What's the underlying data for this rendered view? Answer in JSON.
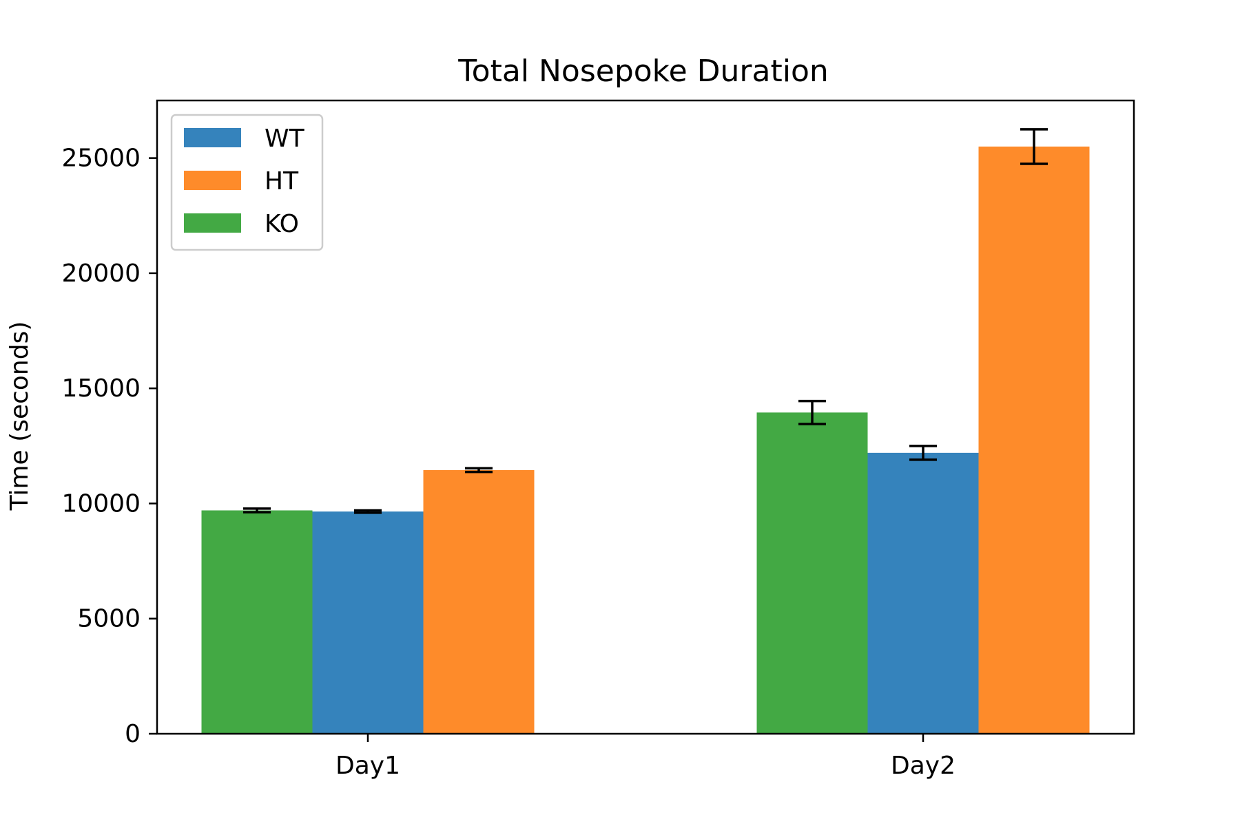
{
  "chart_data": {
    "type": "bar",
    "title": "Total Nosepoke Duration",
    "xlabel": "",
    "ylabel": "Time (seconds)",
    "categories": [
      "Day1",
      "Day2"
    ],
    "ylim": [
      0,
      27500
    ],
    "yticks": [
      0,
      5000,
      10000,
      15000,
      20000,
      25000
    ],
    "grid": false,
    "legend_position": "top-left",
    "bar_order": [
      "KO",
      "WT",
      "HT"
    ],
    "series": [
      {
        "name": "WT",
        "color": "#3583bc",
        "values": [
          9650,
          12200
        ],
        "errors": [
          50,
          300
        ]
      },
      {
        "name": "HT",
        "color": "#fe8b2a",
        "values": [
          11450,
          25500
        ],
        "errors": [
          80,
          750
        ]
      },
      {
        "name": "KO",
        "color": "#43a944",
        "values": [
          9700,
          13950
        ],
        "errors": [
          80,
          500
        ]
      }
    ]
  }
}
